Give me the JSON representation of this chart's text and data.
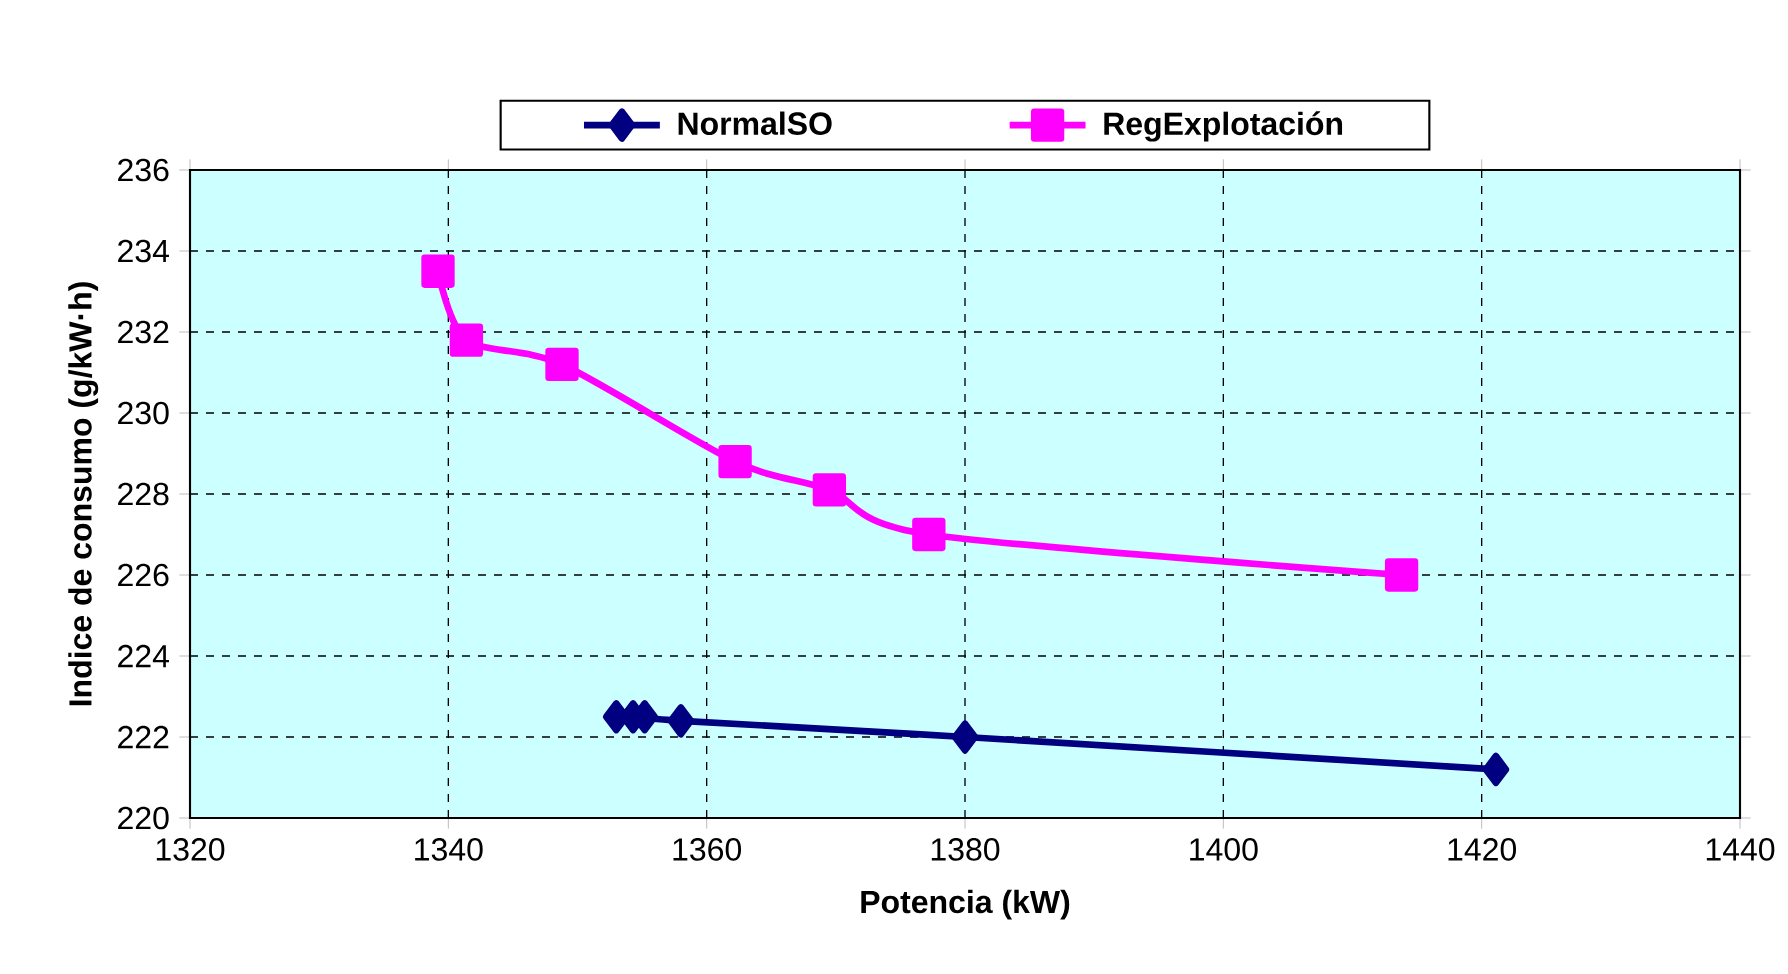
{
  "chart_data": {
    "type": "line",
    "xlabel": "Potencia (kW)",
    "ylabel": "Indice de consumo (g/kW·h)",
    "xlim": [
      1320,
      1440
    ],
    "xticks": [
      1320,
      1340,
      1360,
      1380,
      1400,
      1420,
      1440
    ],
    "ylim": [
      220,
      236
    ],
    "yticks": [
      220,
      222,
      224,
      226,
      228,
      230,
      232,
      234,
      236
    ],
    "grid": true,
    "legend": "top",
    "line_style": "solid",
    "series": [
      {
        "name": "NormalSO",
        "color": "#000080",
        "marker": "diamond",
        "x": [
          1353,
          1354.3,
          1355.2,
          1358,
          1380,
          1421.1
        ],
        "values": [
          222.5,
          222.5,
          222.5,
          222.4,
          222.0,
          221.2
        ]
      },
      {
        "name": "RegExplotación",
        "color": "#ff00ff",
        "marker": "square",
        "x": [
          1339.2,
          1341.4,
          1348.8,
          1362.2,
          1369.5,
          1377.2,
          1413.8
        ],
        "values": [
          233.5,
          231.8,
          231.2,
          228.8,
          228.1,
          227.0,
          226.0
        ]
      }
    ]
  }
}
